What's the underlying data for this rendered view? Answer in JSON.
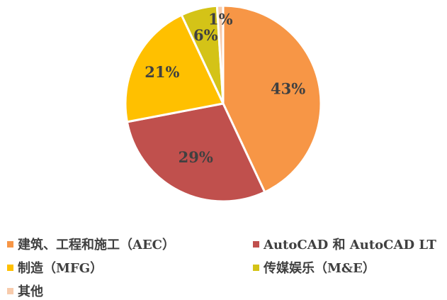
{
  "chart_data": {
    "type": "pie",
    "title": "",
    "start_angle_deg": 0,
    "direction": "clockwise",
    "legend_position": "bottom",
    "series": [
      {
        "categories": [
          "建筑、工程和施工（AEC）",
          "AutoCAD 和 AutoCAD LT",
          "制造（MFG）",
          "传媒娱乐（M&E）",
          "其他"
        ],
        "values": [
          43,
          29,
          21,
          6,
          1
        ],
        "labels": [
          "43%",
          "29%",
          "21%",
          "6%",
          "1%"
        ],
        "colors": [
          "#F79646",
          "#C0504D",
          "#FFC000",
          "#D4C317",
          "#F7CBAC"
        ]
      }
    ]
  }
}
